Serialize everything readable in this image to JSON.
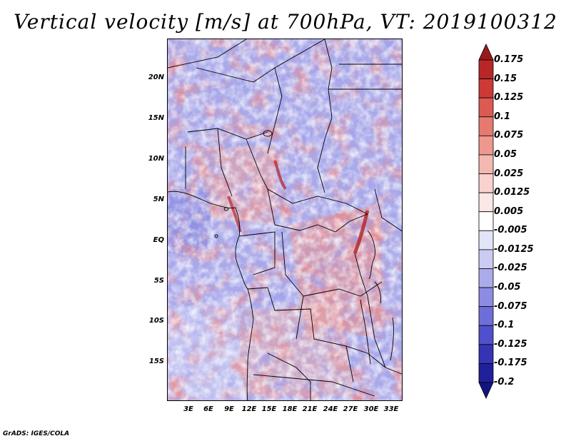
{
  "title": "Vertical velocity [m/s] at 700hPa, VT: 2019100312",
  "credit": "GrADS: IGES/COLA",
  "map": {
    "lat_labels": [
      "20N",
      "15N",
      "10N",
      "5N",
      "EQ",
      "5S",
      "10S",
      "15S"
    ],
    "lon_labels": [
      "3E",
      "6E",
      "9E",
      "12E",
      "15E",
      "18E",
      "21E",
      "24E",
      "27E",
      "30E",
      "33E"
    ]
  },
  "colorbar": {
    "labels": [
      "0.175",
      "0.15",
      "0.125",
      "0.1",
      "0.075",
      "0.05",
      "0.025",
      "0.0125",
      "0.005",
      "-0.005",
      "-0.0125",
      "-0.025",
      "-0.05",
      "-0.075",
      "-0.1",
      "-0.125",
      "-0.175",
      "-0.2"
    ],
    "colors": [
      "#9a1a1a",
      "#b82626",
      "#cc3a36",
      "#dc5a52",
      "#e67a70",
      "#ee9890",
      "#f4b8b2",
      "#f8d2ce",
      "#fbe7e5",
      "#ffffff",
      "#e4e4f8",
      "#cacaf2",
      "#ababec",
      "#8c8ce4",
      "#6e6eda",
      "#5050cc",
      "#3434b4",
      "#20209a",
      "#141480"
    ]
  }
}
